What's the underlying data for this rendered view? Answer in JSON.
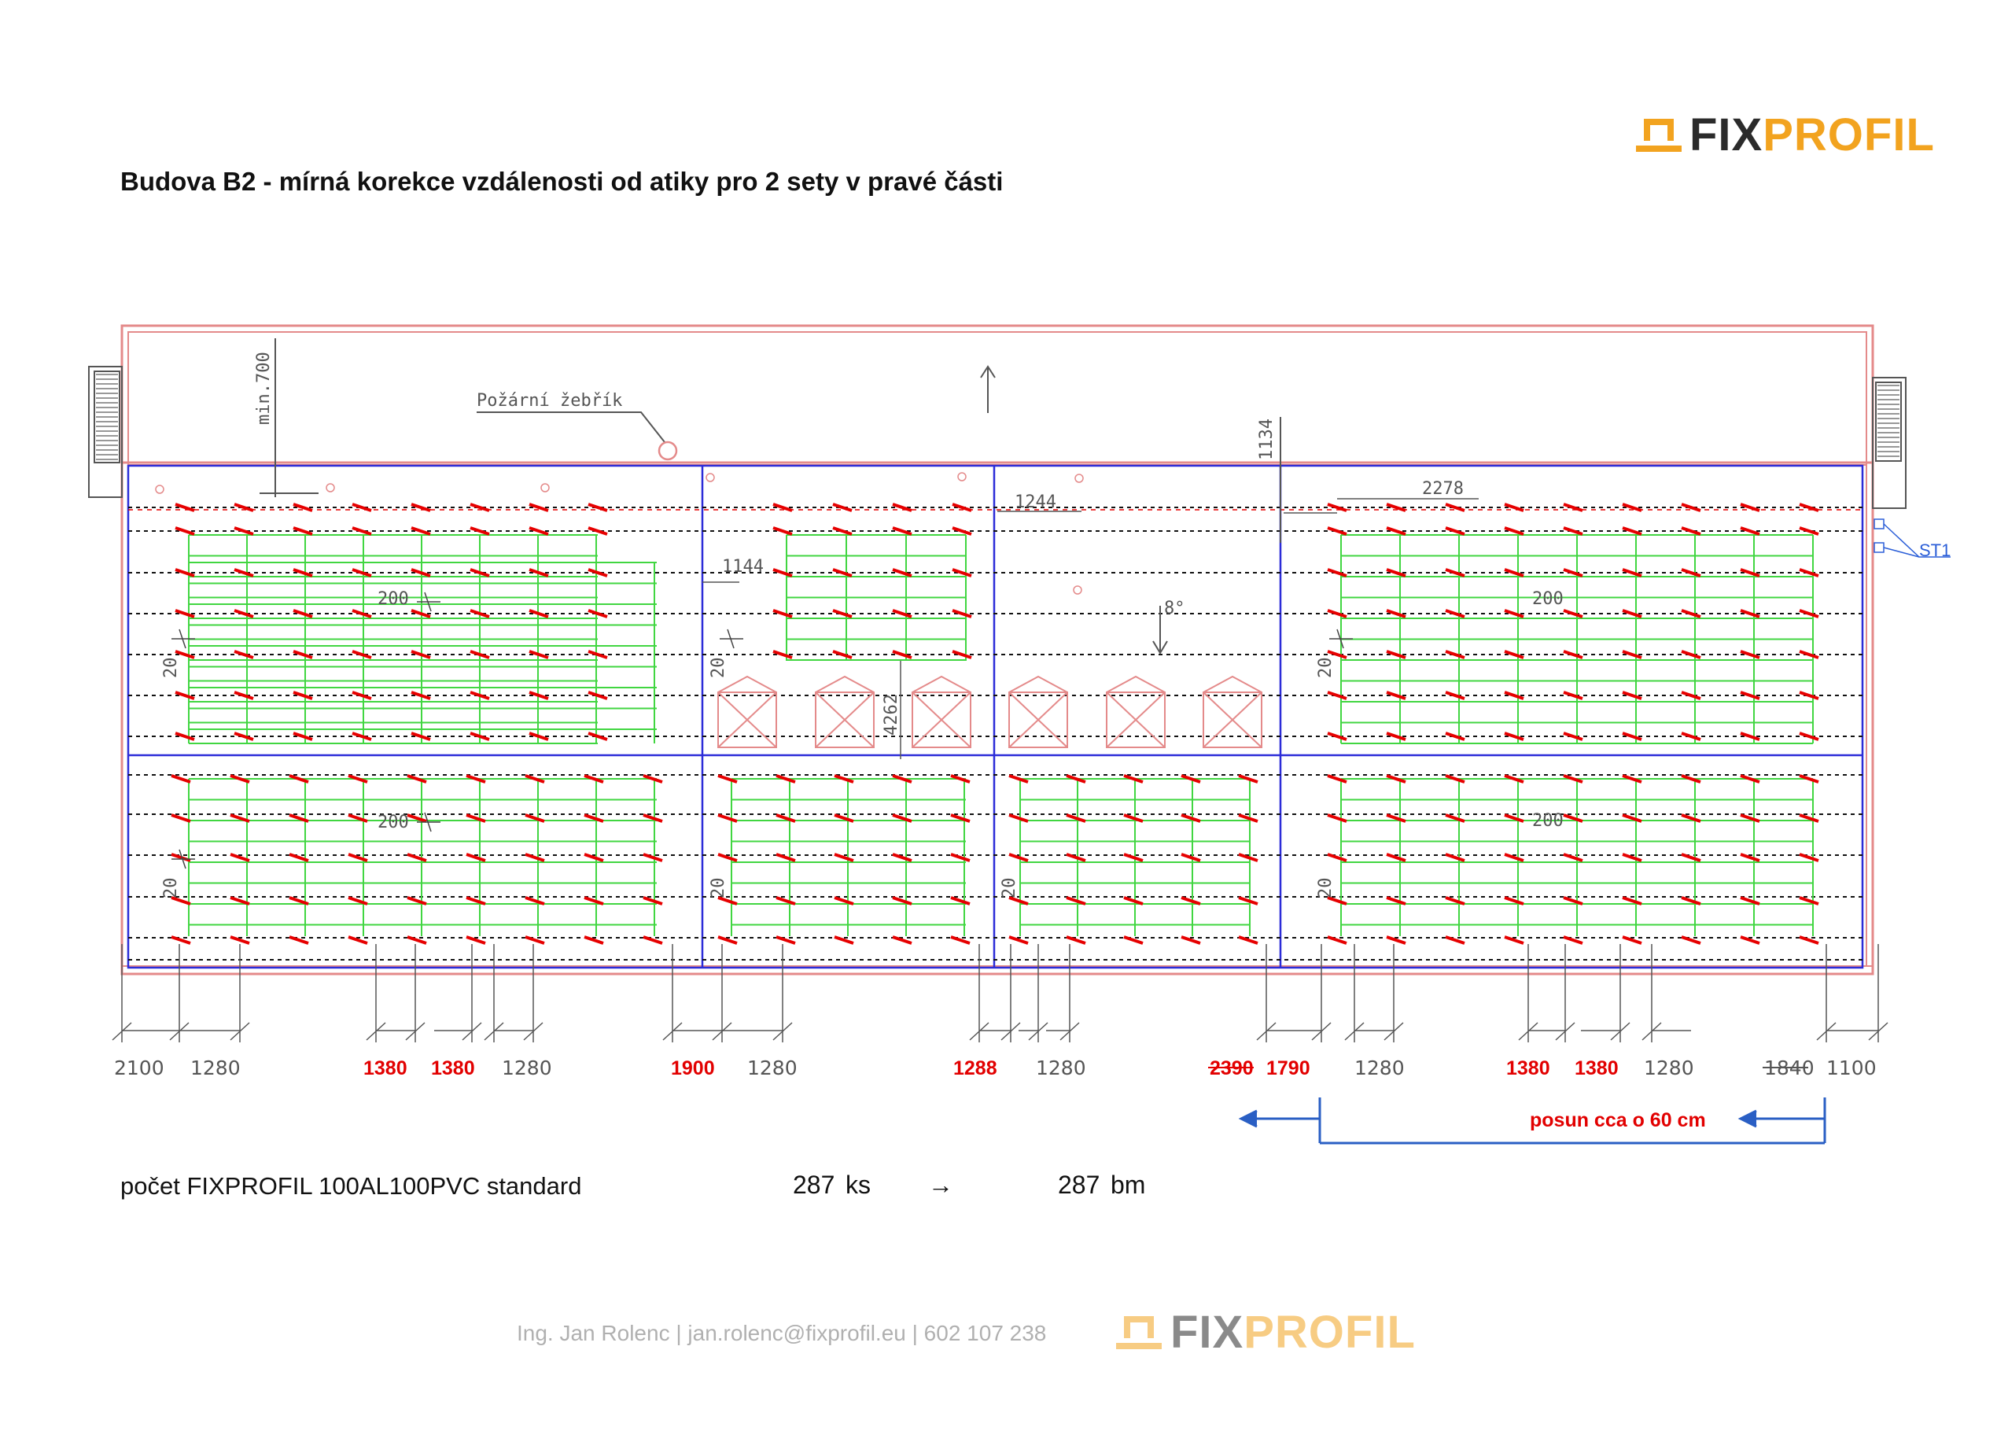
{
  "header": {
    "logo_text_a": "FIX",
    "logo_text_b": "PROFIL",
    "title": "Budova B2 - mírná korekce vzdálenosti od atiky pro 2 sety v pravé části"
  },
  "plan": {
    "labels": {
      "ladder": "Požární žebřík",
      "min_700": "min.700",
      "d1134": "1134",
      "d1244": "1244",
      "d1144": "1144",
      "d2278": "2278",
      "d200": "200",
      "d20": "20",
      "d4262": "4262",
      "slope": "8°",
      "st1": "ST1"
    },
    "bottom_dims": [
      {
        "text": "2100",
        "style": "normal"
      },
      {
        "text": "1280",
        "style": "normal"
      },
      {
        "text": "1380",
        "style": "red"
      },
      {
        "text": "1380",
        "style": "red"
      },
      {
        "text": "1280",
        "style": "normal"
      },
      {
        "text": "1900",
        "style": "red"
      },
      {
        "text": "1280",
        "style": "normal"
      },
      {
        "text": "1288",
        "style": "red"
      },
      {
        "text": "1280",
        "style": "normal"
      },
      {
        "text": "2390",
        "style": "red-strike"
      },
      {
        "text": "1790",
        "style": "red"
      },
      {
        "text": "1280",
        "style": "normal"
      },
      {
        "text": "1380",
        "style": "red"
      },
      {
        "text": "1380",
        "style": "red"
      },
      {
        "text": "1280",
        "style": "normal"
      },
      {
        "text": "1840",
        "style": "strike"
      },
      {
        "text": "1100",
        "style": "normal"
      }
    ],
    "shift_note": "posun cca o 60 cm",
    "colors": {
      "outline": "#e48a8a",
      "field": "#2c2cd8",
      "panel": "#41d641",
      "clamp": "#e60000",
      "arrow": "#2a5fc4"
    }
  },
  "summary": {
    "label": "počet FIXPROFIL 100AL100PVC standard",
    "pieces_value": "287",
    "pieces_unit": "ks",
    "arrow": "→",
    "meters_value": "287",
    "meters_unit": "bm"
  },
  "footer": {
    "contact": "Ing. Jan Rolenc | jan.rolenc@fixprofil.eu | 602 107 238",
    "logo_text_a": "FIX",
    "logo_text_b": "PROFIL"
  }
}
